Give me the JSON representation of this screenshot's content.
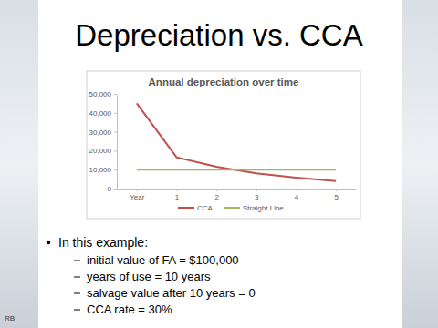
{
  "title": "Depreciation vs. CCA",
  "text": {
    "intro": "In this example:",
    "items": [
      "initial value of FA = $100,000",
      "years of use = 10 years",
      "salvage value after 10 years = 0",
      "CCA rate = 30%"
    ]
  },
  "footer": "RB",
  "chart_data": {
    "type": "line",
    "title": "Annual depreciation over time",
    "categories": [
      "Year",
      "1",
      "2",
      "3",
      "4",
      "5"
    ],
    "series": [
      {
        "name": "CCA",
        "color": "#c0504d",
        "values": [
          45000,
          16500,
          11500,
          8000,
          5800,
          4000
        ]
      },
      {
        "name": "Straight Line",
        "color": "#9bbb59",
        "values": [
          10000,
          10000,
          10000,
          10000,
          10000,
          10000
        ]
      }
    ],
    "ylim": [
      0,
      50000
    ],
    "yticks": [
      0,
      {
        "value": 10000,
        "label": "10,000"
      },
      {
        "value": 20000,
        "label": "20,000"
      },
      {
        "value": 30000,
        "label": "30,000"
      },
      {
        "value": 40000,
        "label": "40,000"
      },
      {
        "value": 50000,
        "label": "50,000"
      }
    ],
    "grid": false,
    "legend": "bottom"
  }
}
